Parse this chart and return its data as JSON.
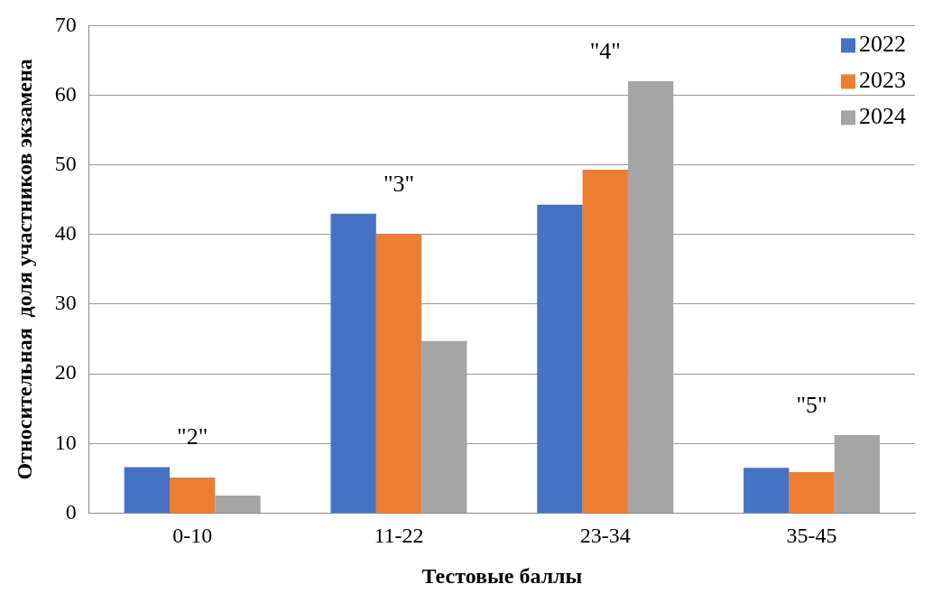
{
  "chart_data": {
    "type": "bar",
    "xlabel": "Тестовые баллы",
    "ylabel": "Относительная  доля участников экзамена",
    "categories": [
      "0-10",
      "11-22",
      "23-34",
      "35-45"
    ],
    "series": [
      {
        "name": "2022",
        "color": "#4472c4",
        "values": [
          6.6,
          43.0,
          44.3,
          6.5
        ]
      },
      {
        "name": "2023",
        "color": "#ed7d31",
        "values": [
          5.1,
          40.1,
          49.3,
          5.9
        ]
      },
      {
        "name": "2024",
        "color": "#a5a5a5",
        "values": [
          2.5,
          24.7,
          62.0,
          11.2
        ]
      }
    ],
    "ylim": [
      0,
      70
    ],
    "yticks": [
      0,
      10,
      20,
      30,
      40,
      50,
      60,
      70
    ],
    "grid": "y",
    "legend": "top right",
    "annotations": [
      "\"2\"",
      "\"3\"",
      "\"4\"",
      "\"5\""
    ]
  }
}
